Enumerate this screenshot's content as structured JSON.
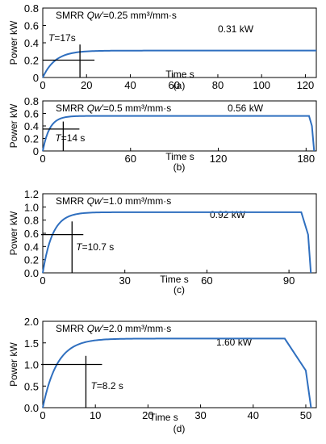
{
  "chart_data": [
    {
      "type": "line",
      "panel_label": "(a)",
      "annotation": {
        "prefix": "SMRR ",
        "symbol": "Qw′",
        "suffix": "=0.25 mm³/mm·s"
      },
      "value_label": "0.31 kW",
      "time_label": "T=17s",
      "xlabel": "Time s",
      "ylabel": "Power kW",
      "xlim": [
        0,
        125
      ],
      "ylim": [
        0,
        0.8
      ],
      "xticks": [
        0,
        20,
        40,
        60,
        80,
        100,
        120
      ],
      "yticks": [
        0,
        0.2,
        0.4,
        0.6,
        0.8
      ],
      "ytick_labels": [
        "0",
        "0.2",
        "0.4",
        "0.6",
        "0.8"
      ],
      "steady_power_kW": 0.31,
      "time_constant_s": 17,
      "marker": {
        "t": 17,
        "p": 0.2
      },
      "ramp_down": null,
      "series": [
        {
          "name": "",
          "color": "#2f6fbf"
        }
      ]
    },
    {
      "type": "line",
      "panel_label": "(b)",
      "annotation": {
        "prefix": "SMRR ",
        "symbol": "Qw′",
        "suffix": "=0.5 mm³/mm·s"
      },
      "value_label": "0.56 kW",
      "time_label": "T=14 s",
      "xlabel": "Time s",
      "ylabel": "Power kW",
      "xlim": [
        0,
        187
      ],
      "ylim": [
        0,
        0.8
      ],
      "xticks": [
        0,
        60,
        120,
        180
      ],
      "yticks": [
        0,
        0.2,
        0.4,
        0.6,
        0.8
      ],
      "ytick_labels": [
        "0",
        "0.2",
        "0.4",
        "0.6",
        "0.8"
      ],
      "steady_power_kW": 0.56,
      "time_constant_s": 14,
      "marker": {
        "t": 14,
        "p": 0.35
      },
      "ramp_down": [
        [
          182,
          0.56
        ],
        [
          184,
          0.4
        ],
        [
          185.5,
          0
        ]
      ],
      "series": [
        {
          "name": "",
          "color": "#2f6fbf"
        }
      ]
    },
    {
      "type": "line",
      "panel_label": "(c)",
      "annotation": {
        "prefix": "SMRR ",
        "symbol": "Qw′",
        "suffix": "=1.0 mm³/mm·s"
      },
      "value_label": "0.92 kW",
      "time_label": "T=10.7 s",
      "xlabel": "Time s",
      "ylabel": "Power kW",
      "xlim": [
        0,
        100
      ],
      "ylim": [
        0,
        1.2
      ],
      "xticks": [
        0,
        30,
        60,
        90
      ],
      "yticks": [
        0,
        0.2,
        0.4,
        0.6,
        0.8,
        1.0,
        1.2
      ],
      "ytick_labels": [
        "0.0",
        "0.2",
        "0.4",
        "0.6",
        "0.8",
        "1.0",
        "1.2"
      ],
      "steady_power_kW": 0.92,
      "time_constant_s": 10.7,
      "marker": {
        "t": 10.7,
        "p": 0.58
      },
      "ramp_down": [
        [
          94.5,
          0.92
        ],
        [
          97,
          0.58
        ],
        [
          98,
          0
        ]
      ],
      "series": [
        {
          "name": "",
          "color": "#2f6fbf"
        }
      ]
    },
    {
      "type": "line",
      "panel_label": "(d)",
      "annotation": {
        "prefix": "SMRR ",
        "symbol": "Qw′",
        "suffix": "=2.0 mm³/mm·s"
      },
      "value_label": "1.60 kW",
      "time_label": "T=8.2 s",
      "xlabel": "Time s",
      "ylabel": "Power kW",
      "xlim": [
        0,
        52
      ],
      "ylim": [
        0,
        2.0
      ],
      "xticks": [
        0,
        10,
        20,
        30,
        40,
        50
      ],
      "yticks": [
        0,
        0.5,
        1.0,
        1.5,
        2.0
      ],
      "ytick_labels": [
        "0.0",
        "0.5",
        "1.0",
        "1.5",
        "2.0"
      ],
      "steady_power_kW": 1.6,
      "time_constant_s": 8.2,
      "marker": {
        "t": 8.2,
        "p": 1.0
      },
      "ramp_down": [
        [
          46,
          1.6
        ],
        [
          50,
          0.86
        ],
        [
          51,
          0
        ]
      ],
      "series": [
        {
          "name": "",
          "color": "#2f6fbf"
        }
      ]
    }
  ]
}
